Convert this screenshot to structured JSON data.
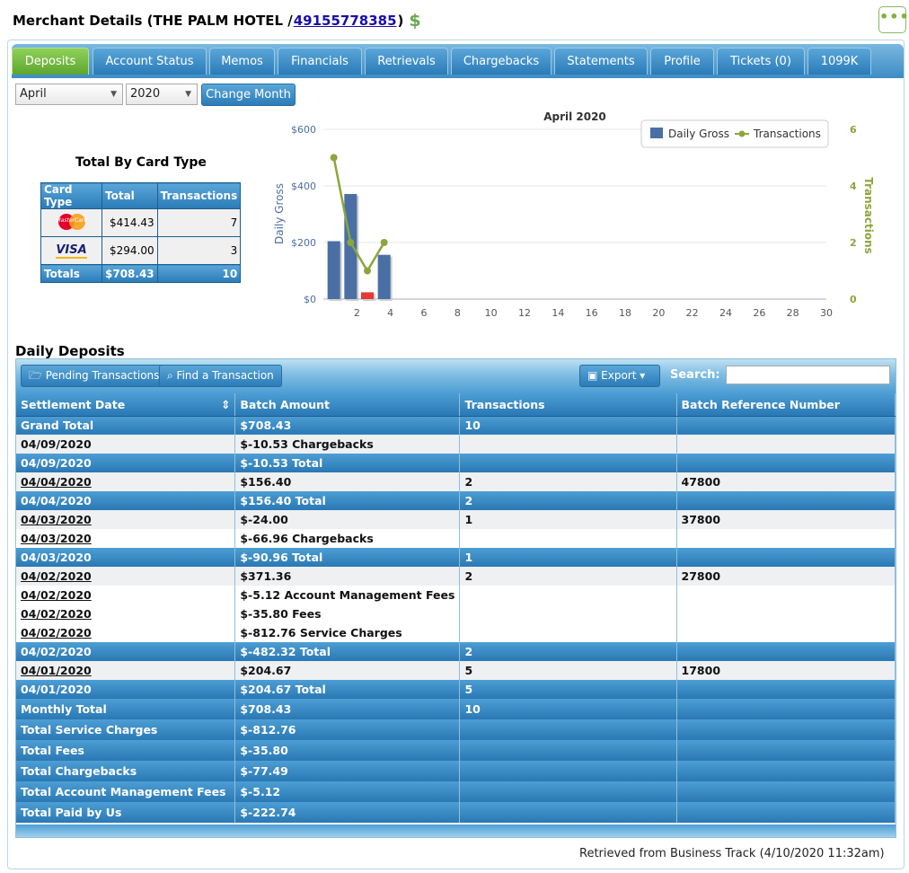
{
  "header": {
    "prefix": "Merchant Details (THE PALM HOTEL / ",
    "merchant_id": "49155778385",
    "suffix": ")",
    "dollar": "$"
  },
  "more_label": "•••",
  "tabs": [
    "Deposits",
    "Account Status",
    "Memos",
    "Financials",
    "Retrievals",
    "Chargebacks",
    "Statements",
    "Profile",
    "Tickets (0)",
    "1099K"
  ],
  "filters": {
    "month": "April",
    "year": "2020",
    "change_label": "Change Month"
  },
  "card_type": {
    "title": "Total By Card Type",
    "headers": [
      "Card Type",
      "Total",
      "Transactions"
    ],
    "rows": [
      {
        "card": "MasterCard",
        "total": "$414.43",
        "count": "7"
      },
      {
        "card": "VISA",
        "total": "$294.00",
        "count": "3"
      }
    ],
    "totals": {
      "label": "Totals",
      "total": "$708.43",
      "count": "10"
    }
  },
  "chart_data": {
    "type": "bar",
    "title": "April 2020",
    "ylabel": "Daily Gross",
    "y2label": "Transactions",
    "ylim": [
      0,
      600
    ],
    "y2lim": [
      0,
      6
    ],
    "xlim": [
      0,
      30
    ],
    "yticks": [
      "$0",
      "$200",
      "$400",
      "$600"
    ],
    "y2ticks": [
      "0",
      "2",
      "4",
      "6"
    ],
    "xticks": [
      "2",
      "4",
      "6",
      "8",
      "10",
      "12",
      "14",
      "16",
      "18",
      "20",
      "22",
      "24",
      "26",
      "28",
      "30"
    ],
    "legend": [
      "Daily Gross",
      "Transactions"
    ],
    "legend_position": "top-right",
    "bar_color": "#4a6fa5",
    "neg_color": "#e53935",
    "line_color": "#8aa63c",
    "bars": [
      {
        "day": 1,
        "value": 204.67
      },
      {
        "day": 2,
        "value": 371.36
      },
      {
        "day": 3,
        "value": 24.0,
        "negative": true
      },
      {
        "day": 4,
        "value": 156.4
      }
    ],
    "line": [
      {
        "day": 1,
        "value": 5
      },
      {
        "day": 2,
        "value": 2
      },
      {
        "day": 3,
        "value": 1
      },
      {
        "day": 4,
        "value": 2
      }
    ]
  },
  "daily": {
    "title": "Daily Deposits",
    "toolbar": {
      "pending": "Pending Transactions",
      "find": "Find a Transaction",
      "export": "Export",
      "search_label": "Search:"
    },
    "columns": [
      "Settlement Date",
      "Batch Amount",
      "Transactions",
      "Batch Reference Number"
    ],
    "rows": [
      {
        "date": "Grand Total",
        "amount": "$708.43",
        "tx": "10",
        "ref": "",
        "style": "blue"
      },
      {
        "date": "04/09/2020",
        "amount": "$-10.53 Chargebacks",
        "tx": "",
        "ref": "",
        "style": "grey",
        "red": true,
        "date_red": true
      },
      {
        "date": "04/09/2020",
        "amount": "$-10.53 Total",
        "tx": "",
        "ref": "",
        "style": "blue"
      },
      {
        "date": "04/04/2020",
        "amount": "$156.40",
        "tx": "2",
        "ref": "47800",
        "style": "grey",
        "ul": true
      },
      {
        "date": "04/04/2020",
        "amount": "$156.40 Total",
        "tx": "2",
        "ref": "",
        "style": "blue"
      },
      {
        "date": "04/03/2020",
        "amount": "$-24.00",
        "tx": "1",
        "ref": "37800",
        "style": "grey",
        "ul": true,
        "red": true
      },
      {
        "date": "04/03/2020",
        "amount": "$-66.96 Chargebacks",
        "tx": "",
        "ref": "",
        "style": "white",
        "ul": true,
        "red": true
      },
      {
        "date": "04/03/2020",
        "amount": "$-90.96 Total",
        "tx": "1",
        "ref": "",
        "style": "blue"
      },
      {
        "date": "04/02/2020",
        "amount": "$371.36",
        "tx": "2",
        "ref": "27800",
        "style": "grey",
        "ul": true
      },
      {
        "date": "04/02/2020",
        "amount": "$-5.12 Account Management Fees",
        "tx": "",
        "ref": "",
        "style": "white",
        "ul": true,
        "red": true
      },
      {
        "date": "04/02/2020",
        "amount": "$-35.80 Fees",
        "tx": "",
        "ref": "",
        "style": "white",
        "ul": true,
        "red": true
      },
      {
        "date": "04/02/2020",
        "amount": "$-812.76 Service Charges",
        "tx": "",
        "ref": "",
        "style": "white",
        "ul": true,
        "red": true
      },
      {
        "date": "04/02/2020",
        "amount": "$-482.32 Total",
        "tx": "2",
        "ref": "",
        "style": "blue"
      },
      {
        "date": "04/01/2020",
        "amount": "$204.67",
        "tx": "5",
        "ref": "17800",
        "style": "grey",
        "ul": true
      },
      {
        "date": "04/01/2020",
        "amount": "$204.67 Total",
        "tx": "5",
        "ref": "",
        "style": "blue"
      },
      {
        "date": "Monthly Total",
        "amount": "$708.43",
        "tx": "10",
        "ref": "",
        "style": "blue big"
      },
      {
        "date": "Total Service Charges",
        "amount": "$-812.76",
        "tx": "",
        "ref": "",
        "style": "blue big"
      },
      {
        "date": "Total Fees",
        "amount": "$-35.80",
        "tx": "",
        "ref": "",
        "style": "blue big"
      },
      {
        "date": "Total Chargebacks",
        "amount": "$-77.49",
        "tx": "",
        "ref": "",
        "style": "blue big"
      },
      {
        "date": "Total Account Management Fees",
        "amount": "$-5.12",
        "tx": "",
        "ref": "",
        "style": "blue big"
      },
      {
        "date": "Total Paid by Us",
        "amount": "$-222.74",
        "tx": "",
        "ref": "",
        "style": "blue big"
      }
    ]
  },
  "footer": "Retrieved from Business Track (4/10/2020 11:32am)"
}
